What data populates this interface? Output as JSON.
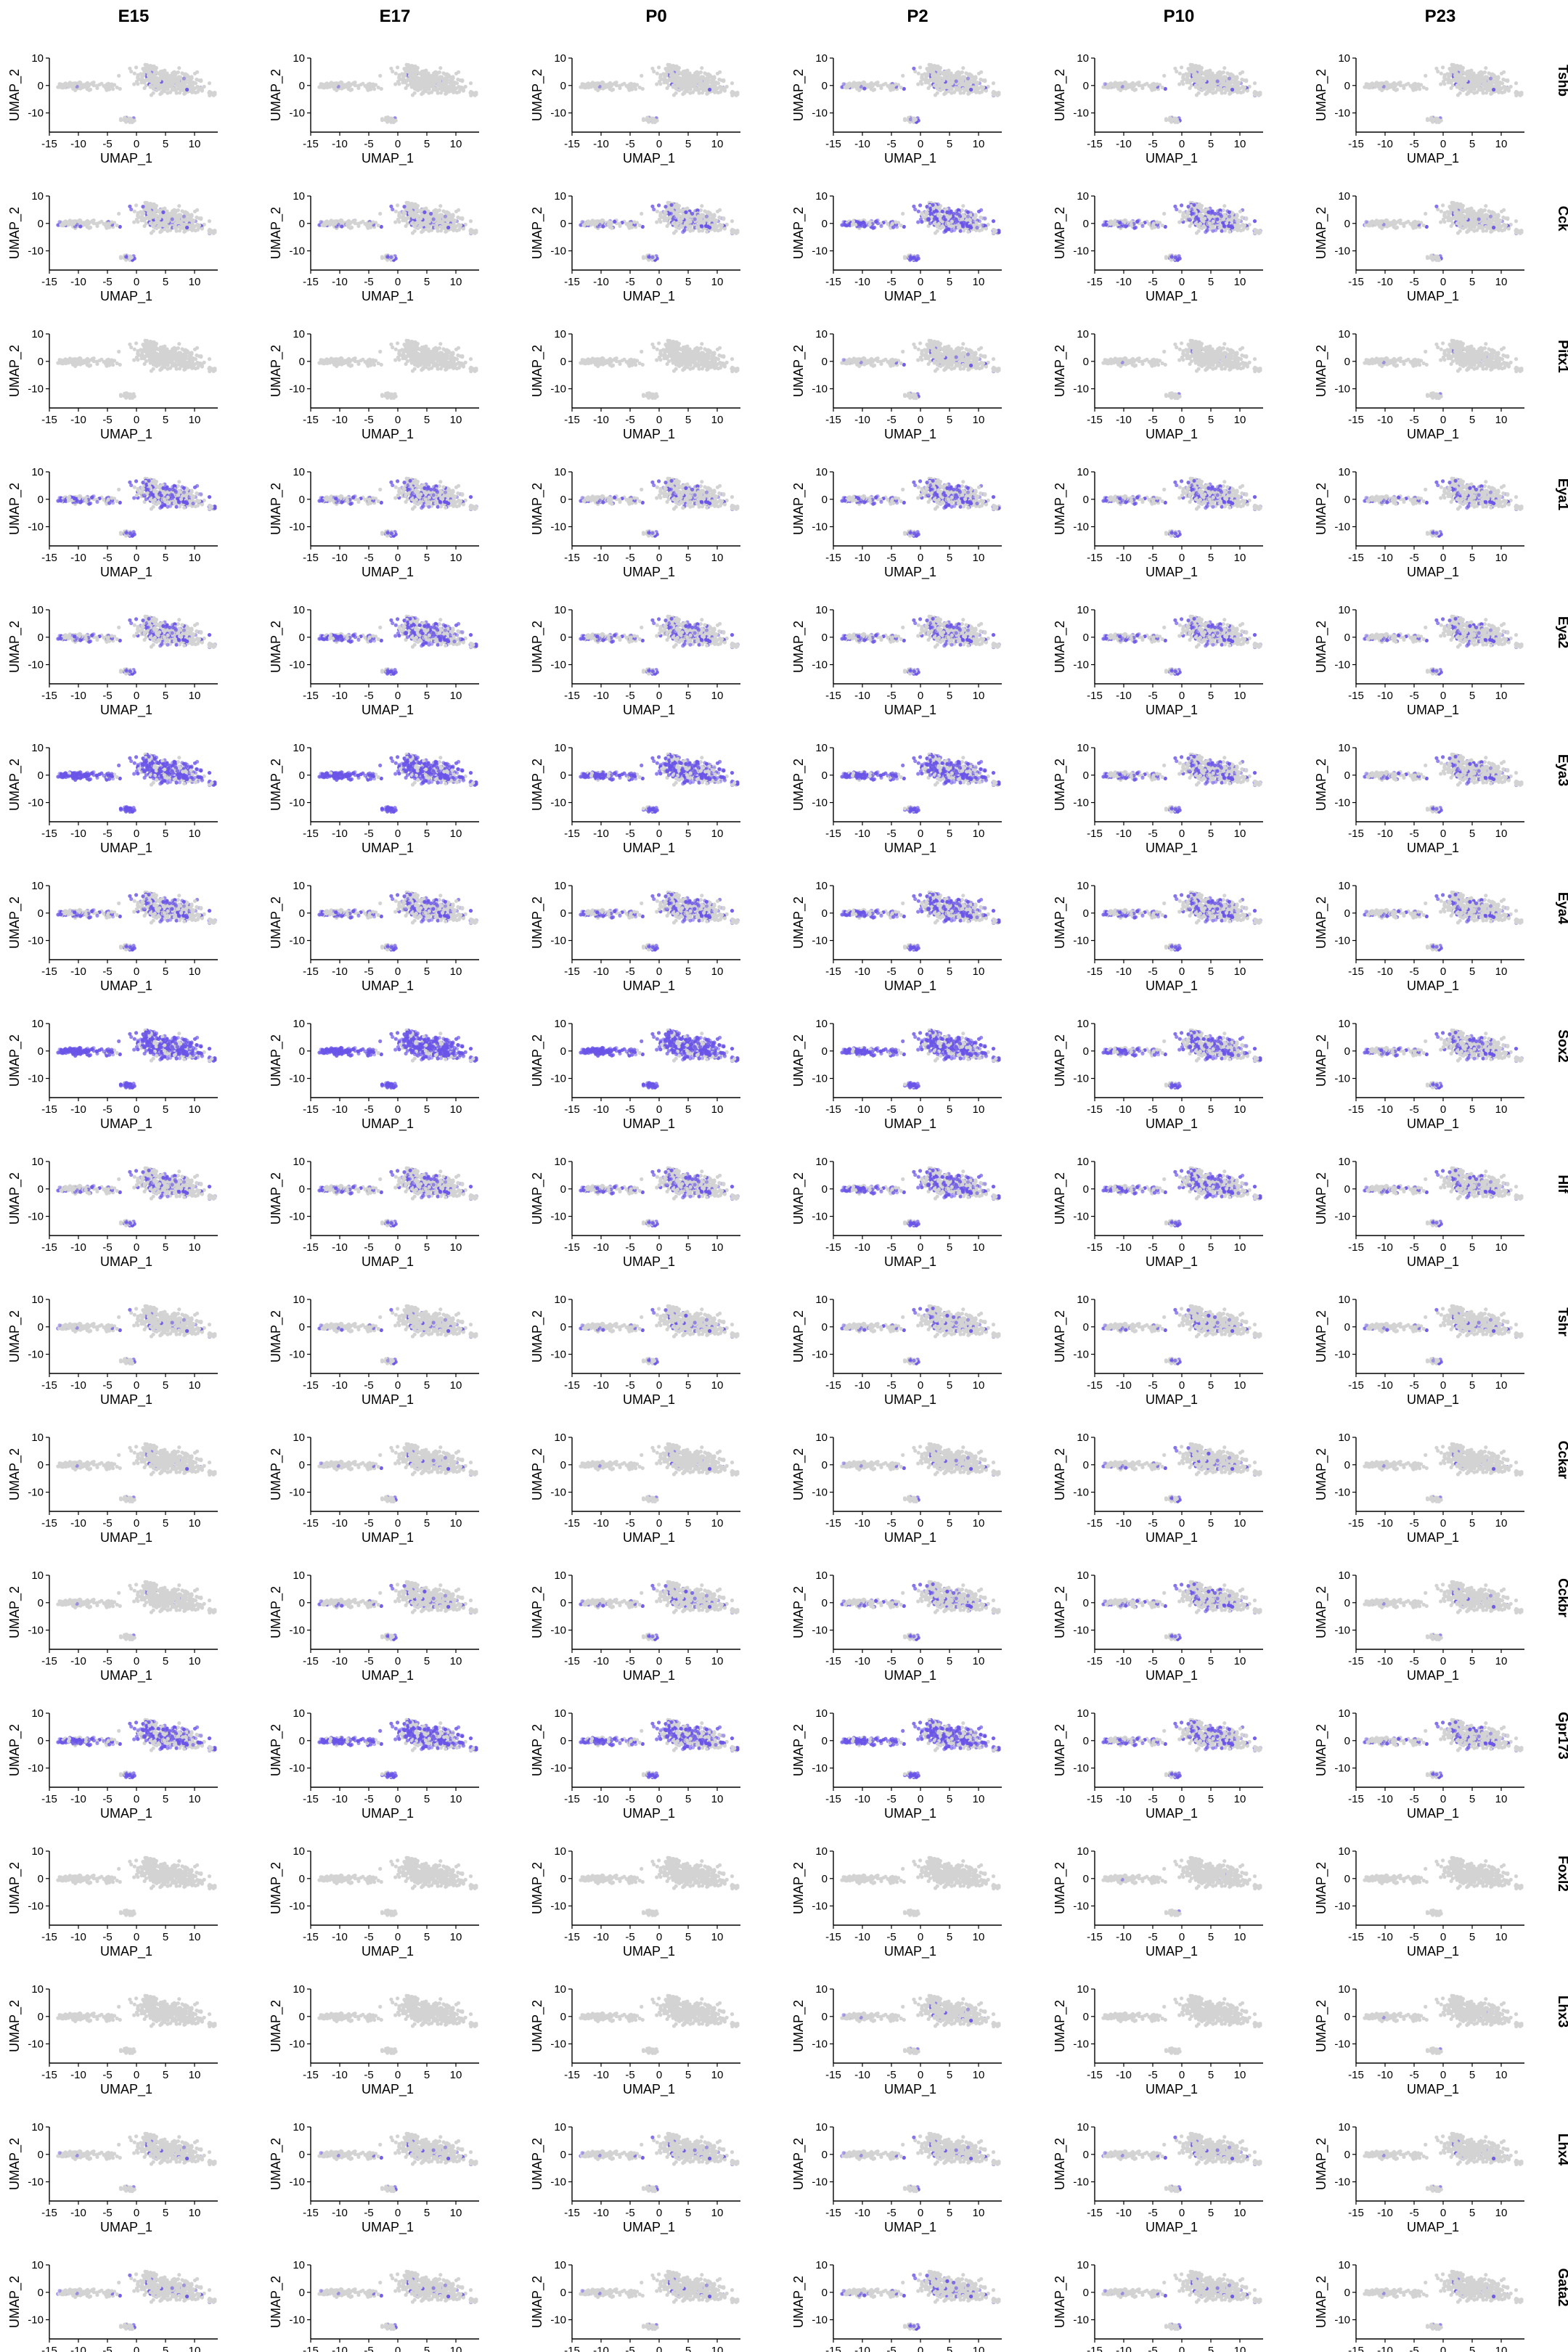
{
  "chart_data": {
    "type": "scatter",
    "title": "",
    "conditions": [
      "E15",
      "E17",
      "P0",
      "P2",
      "P10",
      "P23"
    ],
    "genes": [
      "Tshb",
      "Cck",
      "Pitx1",
      "Eya1",
      "Eya2",
      "Eya3",
      "Eya4",
      "Sox2",
      "Hlf",
      "Tshr",
      "Cckar",
      "Cckbr",
      "Gpr173",
      "Foxl2",
      "Lhx3",
      "Lhx4",
      "Gata2"
    ],
    "xlabel": "UMAP_1",
    "ylabel": "UMAP_2",
    "xlim": [
      -15,
      14
    ],
    "ylim": [
      -17,
      10
    ],
    "xticks": [
      -15,
      -10,
      -5,
      0,
      5,
      10
    ],
    "yticks": [
      10,
      0,
      -10
    ],
    "xtick_labels": [
      "-15",
      "-10",
      "-5",
      "0",
      "5",
      "10"
    ],
    "ytick_labels": [
      "10",
      "0",
      "-10"
    ],
    "background_color": "#d3d3d3",
    "expression_color": "#6a55e8",
    "expression_level": [
      [
        0.05,
        0.03,
        0.04,
        0.12,
        0.08,
        0.05
      ],
      [
        0.15,
        0.18,
        0.3,
        0.55,
        0.45,
        0.1
      ],
      [
        0.0,
        0.0,
        0.0,
        0.08,
        0.03,
        0.03
      ],
      [
        0.5,
        0.4,
        0.28,
        0.48,
        0.4,
        0.3
      ],
      [
        0.4,
        0.55,
        0.4,
        0.4,
        0.4,
        0.3
      ],
      [
        0.85,
        0.85,
        0.75,
        0.72,
        0.45,
        0.3
      ],
      [
        0.45,
        0.45,
        0.45,
        0.55,
        0.45,
        0.3
      ],
      [
        0.9,
        0.95,
        0.9,
        0.8,
        0.55,
        0.4
      ],
      [
        0.35,
        0.4,
        0.42,
        0.55,
        0.5,
        0.3
      ],
      [
        0.1,
        0.12,
        0.15,
        0.2,
        0.18,
        0.12
      ],
      [
        0.04,
        0.08,
        0.04,
        0.08,
        0.15,
        0.04
      ],
      [
        0.03,
        0.15,
        0.18,
        0.25,
        0.3,
        0.05
      ],
      [
        0.6,
        0.75,
        0.6,
        0.75,
        0.45,
        0.3
      ],
      [
        0.0,
        0.0,
        0.0,
        0.0,
        0.02,
        0.0
      ],
      [
        0.0,
        0.0,
        0.0,
        0.06,
        0.0,
        0.02
      ],
      [
        0.06,
        0.08,
        0.1,
        0.1,
        0.1,
        0.04
      ],
      [
        0.1,
        0.08,
        0.06,
        0.18,
        0.08,
        0.04
      ]
    ]
  }
}
